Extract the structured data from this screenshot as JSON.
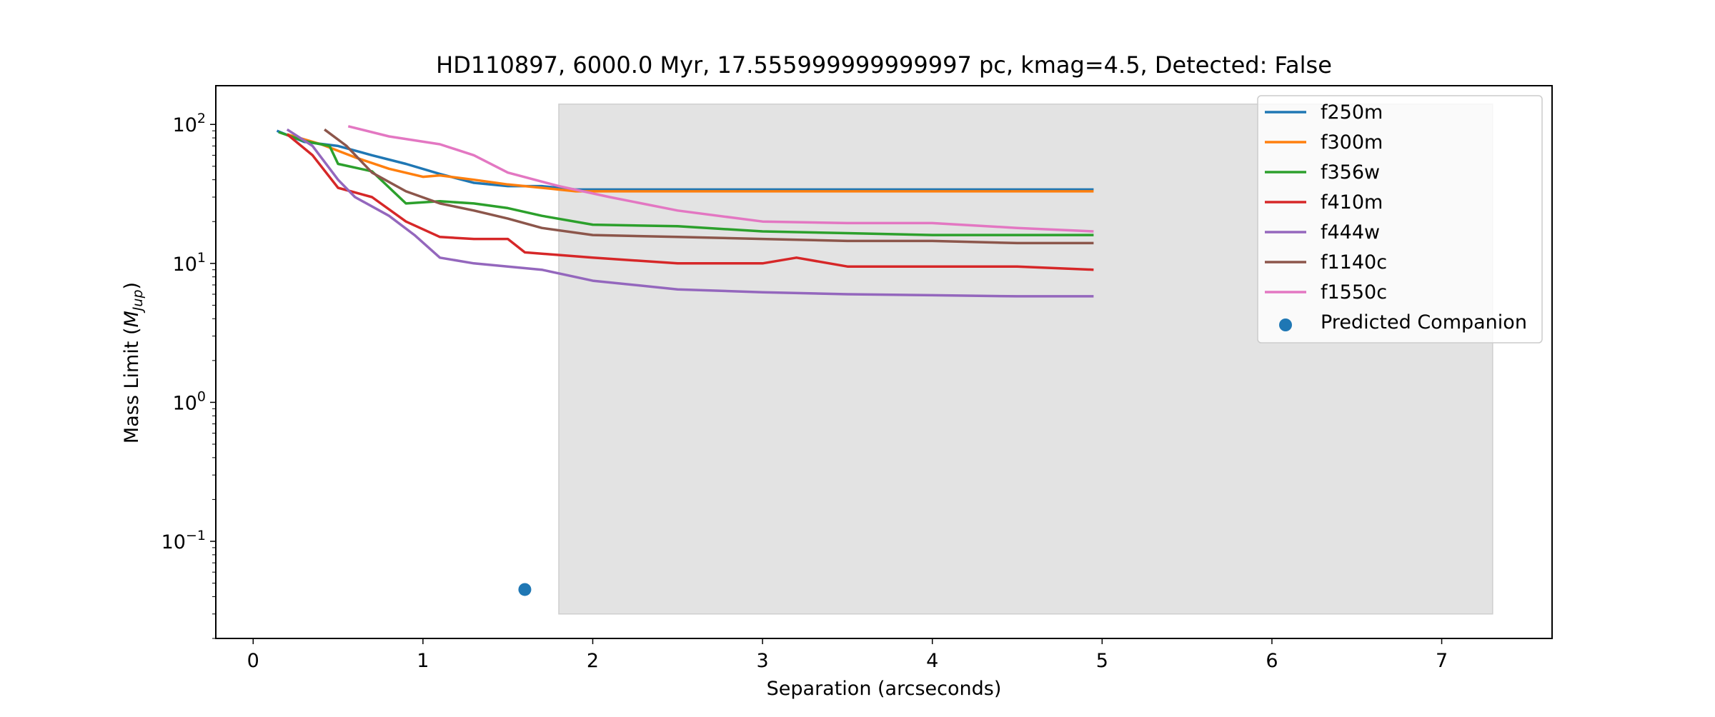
{
  "chart_data": {
    "type": "line",
    "title": "HD110897, 6000.0 Myr, 17.555999999999997 pc, kmag=4.5, Detected: False",
    "xlabel": "Separation (arcseconds)",
    "ylabel_prefix": "Mass Limit (",
    "ylabel_symbol": "M",
    "ylabel_subscript": "Jup",
    "ylabel_suffix": ")",
    "xlim": [
      -0.22,
      7.65
    ],
    "ylim": [
      0.02,
      190
    ],
    "yscale": "log",
    "grid": false,
    "legend_position": "top-right",
    "x_ticks": [
      {
        "value": 0,
        "label": "0"
      },
      {
        "value": 1,
        "label": "1"
      },
      {
        "value": 2,
        "label": "2"
      },
      {
        "value": 3,
        "label": "3"
      },
      {
        "value": 4,
        "label": "4"
      },
      {
        "value": 5,
        "label": "5"
      },
      {
        "value": 6,
        "label": "6"
      },
      {
        "value": 7,
        "label": "7"
      }
    ],
    "y_ticks": [
      {
        "value": 0.1,
        "base": "10",
        "exp": "−1"
      },
      {
        "value": 1,
        "base": "10",
        "exp": "0"
      },
      {
        "value": 10,
        "base": "10",
        "exp": "1"
      },
      {
        "value": 100,
        "base": "10",
        "exp": "2"
      }
    ],
    "shaded_region": {
      "x": [
        1.8,
        7.3
      ],
      "y": [
        0.03,
        140
      ],
      "color": "#e3e3e3"
    },
    "series": [
      {
        "name": "f250m",
        "color": "#1f77b4",
        "x": [
          0.14,
          0.3,
          0.5,
          0.7,
          0.9,
          1.1,
          1.3,
          1.5,
          1.7,
          1.9,
          2.1,
          2.5,
          3.0,
          3.5,
          4.0,
          4.5,
          4.95
        ],
        "y": [
          90,
          75,
          70,
          60,
          52,
          44,
          38,
          36,
          36,
          34,
          34,
          34,
          34,
          34,
          34,
          34,
          34
        ]
      },
      {
        "name": "f300m",
        "color": "#ff7f0e",
        "x": [
          0.2,
          0.4,
          0.6,
          0.8,
          1.0,
          1.1,
          1.3,
          1.5,
          1.7,
          1.9,
          2.1,
          2.5,
          3.0,
          3.5,
          4.0,
          4.5,
          4.95
        ],
        "y": [
          85,
          72,
          58,
          48,
          42,
          43,
          40,
          37,
          35,
          33,
          33,
          33,
          33,
          33,
          33,
          33,
          33
        ]
      },
      {
        "name": "f356w",
        "color": "#2ca02c",
        "x": [
          0.15,
          0.3,
          0.45,
          0.5,
          0.7,
          0.9,
          1.1,
          1.3,
          1.5,
          1.7,
          2.0,
          2.5,
          3.0,
          3.5,
          4.0,
          4.5,
          4.95
        ],
        "y": [
          88,
          76,
          70,
          52,
          46,
          27,
          28,
          27,
          25,
          22,
          19,
          18.5,
          17,
          16.5,
          16,
          16,
          16
        ]
      },
      {
        "name": "f410m",
        "color": "#d62728",
        "x": [
          0.2,
          0.35,
          0.5,
          0.7,
          0.9,
          1.1,
          1.3,
          1.5,
          1.6,
          2.0,
          2.5,
          3.0,
          3.2,
          3.5,
          4.0,
          4.5,
          4.95
        ],
        "y": [
          85,
          60,
          35,
          30,
          20,
          15.5,
          15,
          15,
          12,
          11,
          10,
          10,
          11,
          9.5,
          9.5,
          9.5,
          9
        ]
      },
      {
        "name": "f444w",
        "color": "#9467bd",
        "x": [
          0.2,
          0.35,
          0.5,
          0.6,
          0.8,
          0.95,
          1.1,
          1.3,
          1.5,
          1.7,
          2.0,
          2.5,
          3.0,
          3.5,
          4.0,
          4.5,
          4.95
        ],
        "y": [
          92,
          70,
          40,
          30,
          22,
          16,
          11,
          10,
          9.5,
          9,
          7.5,
          6.5,
          6.2,
          6,
          5.9,
          5.8,
          5.8
        ]
      },
      {
        "name": "f1140c",
        "color": "#8c564b",
        "x": [
          0.42,
          0.55,
          0.7,
          0.9,
          1.1,
          1.3,
          1.5,
          1.7,
          2.0,
          2.5,
          3.0,
          3.5,
          4.0,
          4.5,
          4.95
        ],
        "y": [
          92,
          70,
          45,
          33,
          27,
          24,
          21,
          18,
          16,
          15.5,
          15,
          14.5,
          14.5,
          14,
          14
        ]
      },
      {
        "name": "f1550c",
        "color": "#e377c2",
        "x": [
          0.56,
          0.8,
          1.1,
          1.3,
          1.5,
          1.8,
          2.1,
          2.5,
          3.0,
          3.5,
          4.0,
          4.5,
          4.95
        ],
        "y": [
          97,
          82,
          72,
          60,
          45,
          36,
          30,
          24,
          20,
          19.5,
          19.5,
          18,
          17
        ]
      }
    ],
    "scatter": [
      {
        "name": "Predicted Companion",
        "color": "#1f77b4",
        "x": [
          1.6
        ],
        "y": [
          0.045
        ]
      }
    ]
  }
}
